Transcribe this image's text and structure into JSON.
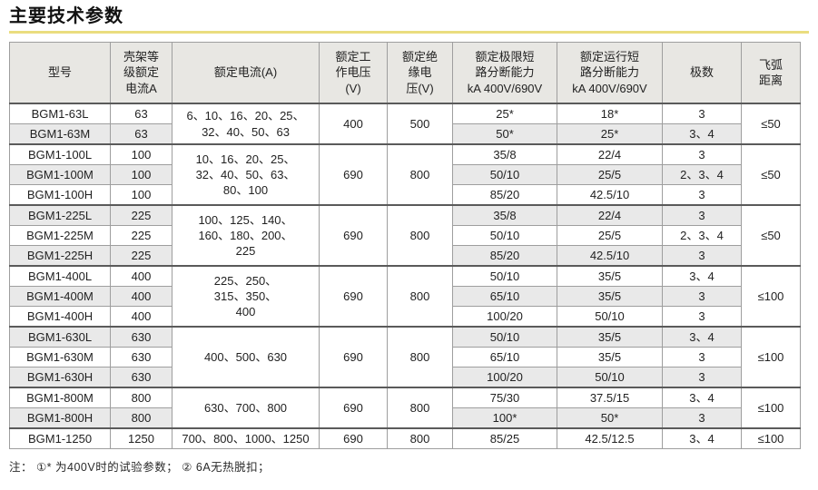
{
  "page_title": "主要技术参数",
  "footnote": "注： ①* 为400V时的试验参数； ② 6A无热脱扣；",
  "colors": {
    "title_underline": "#eadd7f",
    "header_bg": "#e8e7e3",
    "stripe_bg": "#e9e9e9",
    "border": "#9e9e9e",
    "group_border": "#5a5a5a"
  },
  "table": {
    "col_widths": [
      "111px",
      "68px",
      "162px",
      "75px",
      "72px",
      "115px",
      "116px",
      "87px",
      "65px"
    ],
    "columns": [
      {
        "key": "model",
        "label": "型号"
      },
      {
        "key": "frame_current",
        "label": "壳架等\n级额定\n电流A"
      },
      {
        "key": "rated_current",
        "label": "额定电流(A)"
      },
      {
        "key": "working_voltage",
        "label": "额定工\n作电压\n(V)"
      },
      {
        "key": "insulation_voltage",
        "label": "额定绝\n缘电\n压(V)"
      },
      {
        "key": "ultimate_breaking",
        "label": "额定极限短\n路分断能力\nkA 400V/690V"
      },
      {
        "key": "service_breaking",
        "label": "额定运行短\n路分断能力\nkA 400V/690V"
      },
      {
        "key": "poles",
        "label": "极数"
      },
      {
        "key": "arc_distance",
        "label": "飞弧\n距离"
      }
    ],
    "groups": [
      {
        "rated_current": "6、10、16、20、25、\n32、40、50、63",
        "working_voltage": "400",
        "insulation_voltage": "500",
        "arc_distance": "≤50",
        "rows": [
          {
            "model": "BGM1-63L",
            "frame_current": "63",
            "ultimate_breaking": "25*",
            "service_breaking": "18*",
            "poles": "3"
          },
          {
            "model": "BGM1-63M",
            "frame_current": "63",
            "ultimate_breaking": "50*",
            "service_breaking": "25*",
            "poles": "3、4"
          }
        ]
      },
      {
        "rated_current": "10、16、20、25、\n32、40、50、63、\n80、100",
        "working_voltage": "690",
        "insulation_voltage": "800",
        "arc_distance": "≤50",
        "rows": [
          {
            "model": "BGM1-100L",
            "frame_current": "100",
            "ultimate_breaking": "35/8",
            "service_breaking": "22/4",
            "poles": "3"
          },
          {
            "model": "BGM1-100M",
            "frame_current": "100",
            "ultimate_breaking": "50/10",
            "service_breaking": "25/5",
            "poles": "2、3、4"
          },
          {
            "model": "BGM1-100H",
            "frame_current": "100",
            "ultimate_breaking": "85/20",
            "service_breaking": "42.5/10",
            "poles": "3"
          }
        ]
      },
      {
        "rated_current": "100、125、140、\n160、180、200、\n225",
        "working_voltage": "690",
        "insulation_voltage": "800",
        "arc_distance": "≤50",
        "rows": [
          {
            "model": "BGM1-225L",
            "frame_current": "225",
            "ultimate_breaking": "35/8",
            "service_breaking": "22/4",
            "poles": "3"
          },
          {
            "model": "BGM1-225M",
            "frame_current": "225",
            "ultimate_breaking": "50/10",
            "service_breaking": "25/5",
            "poles": "2、3、4"
          },
          {
            "model": "BGM1-225H",
            "frame_current": "225",
            "ultimate_breaking": "85/20",
            "service_breaking": "42.5/10",
            "poles": "3"
          }
        ]
      },
      {
        "rated_current": "225、250、\n315、350、\n400",
        "working_voltage": "690",
        "insulation_voltage": "800",
        "arc_distance": "≤100",
        "rows": [
          {
            "model": "BGM1-400L",
            "frame_current": "400",
            "ultimate_breaking": "50/10",
            "service_breaking": "35/5",
            "poles": "3、4"
          },
          {
            "model": "BGM1-400M",
            "frame_current": "400",
            "ultimate_breaking": "65/10",
            "service_breaking": "35/5",
            "poles": "3"
          },
          {
            "model": "BGM1-400H",
            "frame_current": "400",
            "ultimate_breaking": "100/20",
            "service_breaking": "50/10",
            "poles": "3"
          }
        ]
      },
      {
        "rated_current": "400、500、630",
        "working_voltage": "690",
        "insulation_voltage": "800",
        "arc_distance": "≤100",
        "rows": [
          {
            "model": "BGM1-630L",
            "frame_current": "630",
            "ultimate_breaking": "50/10",
            "service_breaking": "35/5",
            "poles": "3、4"
          },
          {
            "model": "BGM1-630M",
            "frame_current": "630",
            "ultimate_breaking": "65/10",
            "service_breaking": "35/5",
            "poles": "3"
          },
          {
            "model": "BGM1-630H",
            "frame_current": "630",
            "ultimate_breaking": "100/20",
            "service_breaking": "50/10",
            "poles": "3"
          }
        ]
      },
      {
        "rated_current": "630、700、800",
        "working_voltage": "690",
        "insulation_voltage": "800",
        "arc_distance": "≤100",
        "rows": [
          {
            "model": "BGM1-800M",
            "frame_current": "800",
            "ultimate_breaking": "75/30",
            "service_breaking": "37.5/15",
            "poles": "3、4"
          },
          {
            "model": "BGM1-800H",
            "frame_current": "800",
            "ultimate_breaking": "100*",
            "service_breaking": "50*",
            "poles": "3"
          }
        ]
      },
      {
        "rated_current": "700、800、1000、1250",
        "working_voltage": "690",
        "insulation_voltage": "800",
        "arc_distance": "≤100",
        "rows": [
          {
            "model": "BGM1-1250",
            "frame_current": "1250",
            "ultimate_breaking": "85/25",
            "service_breaking": "42.5/12.5",
            "poles": "3、4"
          }
        ]
      }
    ]
  }
}
